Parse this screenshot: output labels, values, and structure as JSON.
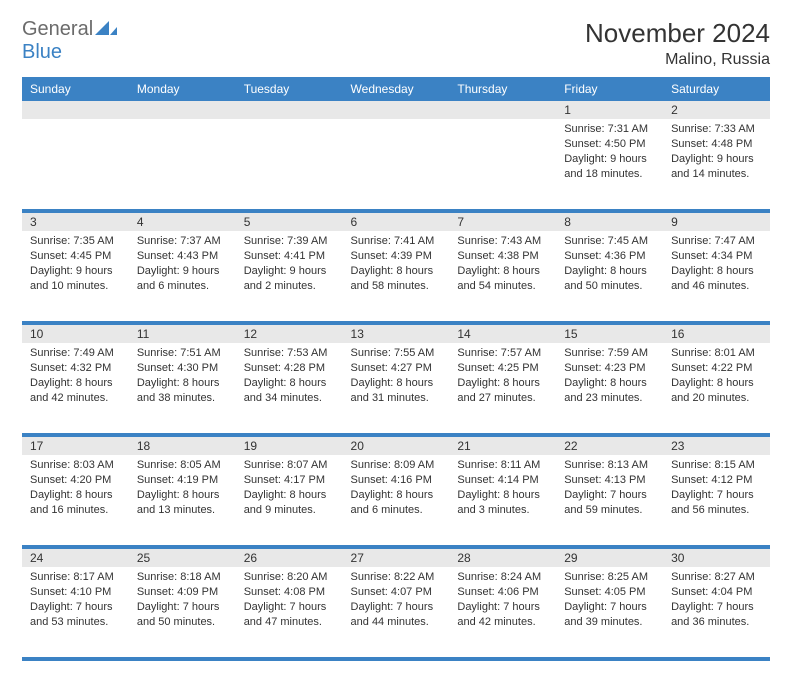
{
  "brand": {
    "name1": "General",
    "name2": "Blue"
  },
  "title": {
    "month": "November 2024",
    "location": "Malino, Russia"
  },
  "colors": {
    "header_bg": "#3b82c4",
    "header_text": "#ffffff",
    "daynum_bg": "#e8e8e8",
    "text": "#333333",
    "rule": "#3b82c4",
    "logo_gray": "#6b6b6b",
    "logo_blue": "#3b82c4"
  },
  "weekdays": [
    "Sunday",
    "Monday",
    "Tuesday",
    "Wednesday",
    "Thursday",
    "Friday",
    "Saturday"
  ],
  "weeks": [
    [
      null,
      null,
      null,
      null,
      null,
      {
        "n": "1",
        "sr": "7:31 AM",
        "ss": "4:50 PM",
        "dl": "9 hours and 18 minutes."
      },
      {
        "n": "2",
        "sr": "7:33 AM",
        "ss": "4:48 PM",
        "dl": "9 hours and 14 minutes."
      }
    ],
    [
      {
        "n": "3",
        "sr": "7:35 AM",
        "ss": "4:45 PM",
        "dl": "9 hours and 10 minutes."
      },
      {
        "n": "4",
        "sr": "7:37 AM",
        "ss": "4:43 PM",
        "dl": "9 hours and 6 minutes."
      },
      {
        "n": "5",
        "sr": "7:39 AM",
        "ss": "4:41 PM",
        "dl": "9 hours and 2 minutes."
      },
      {
        "n": "6",
        "sr": "7:41 AM",
        "ss": "4:39 PM",
        "dl": "8 hours and 58 minutes."
      },
      {
        "n": "7",
        "sr": "7:43 AM",
        "ss": "4:38 PM",
        "dl": "8 hours and 54 minutes."
      },
      {
        "n": "8",
        "sr": "7:45 AM",
        "ss": "4:36 PM",
        "dl": "8 hours and 50 minutes."
      },
      {
        "n": "9",
        "sr": "7:47 AM",
        "ss": "4:34 PM",
        "dl": "8 hours and 46 minutes."
      }
    ],
    [
      {
        "n": "10",
        "sr": "7:49 AM",
        "ss": "4:32 PM",
        "dl": "8 hours and 42 minutes."
      },
      {
        "n": "11",
        "sr": "7:51 AM",
        "ss": "4:30 PM",
        "dl": "8 hours and 38 minutes."
      },
      {
        "n": "12",
        "sr": "7:53 AM",
        "ss": "4:28 PM",
        "dl": "8 hours and 34 minutes."
      },
      {
        "n": "13",
        "sr": "7:55 AM",
        "ss": "4:27 PM",
        "dl": "8 hours and 31 minutes."
      },
      {
        "n": "14",
        "sr": "7:57 AM",
        "ss": "4:25 PM",
        "dl": "8 hours and 27 minutes."
      },
      {
        "n": "15",
        "sr": "7:59 AM",
        "ss": "4:23 PM",
        "dl": "8 hours and 23 minutes."
      },
      {
        "n": "16",
        "sr": "8:01 AM",
        "ss": "4:22 PM",
        "dl": "8 hours and 20 minutes."
      }
    ],
    [
      {
        "n": "17",
        "sr": "8:03 AM",
        "ss": "4:20 PM",
        "dl": "8 hours and 16 minutes."
      },
      {
        "n": "18",
        "sr": "8:05 AM",
        "ss": "4:19 PM",
        "dl": "8 hours and 13 minutes."
      },
      {
        "n": "19",
        "sr": "8:07 AM",
        "ss": "4:17 PM",
        "dl": "8 hours and 9 minutes."
      },
      {
        "n": "20",
        "sr": "8:09 AM",
        "ss": "4:16 PM",
        "dl": "8 hours and 6 minutes."
      },
      {
        "n": "21",
        "sr": "8:11 AM",
        "ss": "4:14 PM",
        "dl": "8 hours and 3 minutes."
      },
      {
        "n": "22",
        "sr": "8:13 AM",
        "ss": "4:13 PM",
        "dl": "7 hours and 59 minutes."
      },
      {
        "n": "23",
        "sr": "8:15 AM",
        "ss": "4:12 PM",
        "dl": "7 hours and 56 minutes."
      }
    ],
    [
      {
        "n": "24",
        "sr": "8:17 AM",
        "ss": "4:10 PM",
        "dl": "7 hours and 53 minutes."
      },
      {
        "n": "25",
        "sr": "8:18 AM",
        "ss": "4:09 PM",
        "dl": "7 hours and 50 minutes."
      },
      {
        "n": "26",
        "sr": "8:20 AM",
        "ss": "4:08 PM",
        "dl": "7 hours and 47 minutes."
      },
      {
        "n": "27",
        "sr": "8:22 AM",
        "ss": "4:07 PM",
        "dl": "7 hours and 44 minutes."
      },
      {
        "n": "28",
        "sr": "8:24 AM",
        "ss": "4:06 PM",
        "dl": "7 hours and 42 minutes."
      },
      {
        "n": "29",
        "sr": "8:25 AM",
        "ss": "4:05 PM",
        "dl": "7 hours and 39 minutes."
      },
      {
        "n": "30",
        "sr": "8:27 AM",
        "ss": "4:04 PM",
        "dl": "7 hours and 36 minutes."
      }
    ]
  ],
  "labels": {
    "sunrise": "Sunrise:",
    "sunset": "Sunset:",
    "daylight": "Daylight:"
  }
}
